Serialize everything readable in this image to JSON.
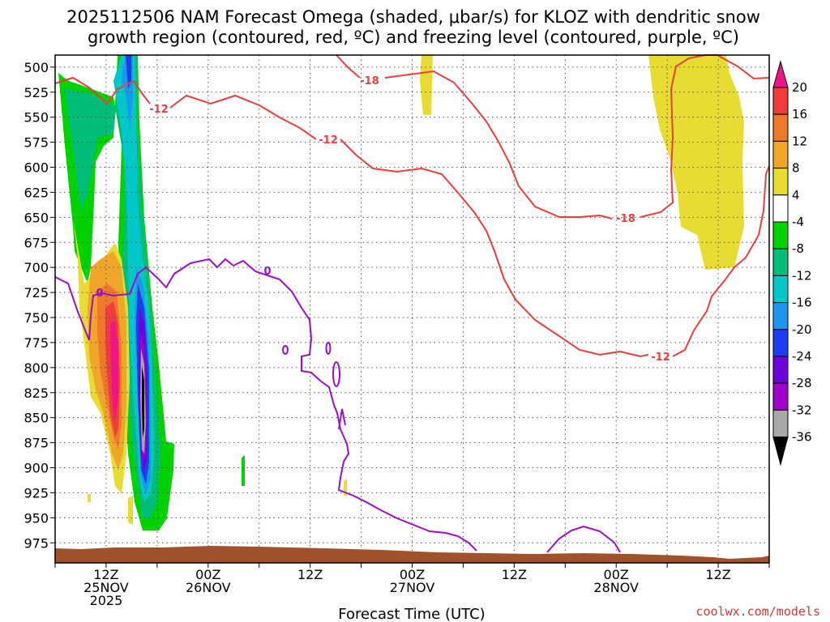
{
  "chart_data": {
    "type": "heatmap",
    "title": [
      "2025112506 NAM Forecast Omega (shaded, μbar/s) for KLOZ with dendritic snow",
      "growth region (contoured, red, ºC) and freezing level (contoured, purple, ºC)"
    ],
    "xlabel": "Forecast Time (UTC)",
    "ylabel": "",
    "y_ticks": [
      "500",
      "525",
      "550",
      "575",
      "600",
      "625",
      "650",
      "675",
      "700",
      "725",
      "750",
      "775",
      "800",
      "825",
      "850",
      "875",
      "900",
      "925",
      "950",
      "975"
    ],
    "x_ticks": [
      {
        "hour": 6,
        "l1": "12Z",
        "l2": "25NOV",
        "l3": "2025"
      },
      {
        "hour": 18,
        "l1": "00Z",
        "l2": "26NOV",
        "l3": ""
      },
      {
        "hour": 30,
        "l1": "12Z",
        "l2": "",
        "l3": ""
      },
      {
        "hour": 42,
        "l1": "00Z",
        "l2": "27NOV",
        "l3": ""
      },
      {
        "hour": 54,
        "l1": "12Z",
        "l2": "",
        "l3": ""
      },
      {
        "hour": 66,
        "l1": "00Z",
        "l2": "28NOV",
        "l3": ""
      },
      {
        "hour": 78,
        "l1": "12Z",
        "l2": "",
        "l3": ""
      }
    ],
    "x_range_hours": [
      0,
      84
    ],
    "y_range_mb": [
      488,
      995
    ],
    "colorbar": {
      "ticks": [
        "20",
        "16",
        "12",
        "8",
        "4",
        "-4",
        "-8",
        "-12",
        "-16",
        "-20",
        "-24",
        "-28",
        "-32",
        "-36"
      ],
      "colors": [
        "#f0148c",
        "#f03c3c",
        "#f0782a",
        "#f0a628",
        "#e8dc32",
        "#ffffff",
        "#00d200",
        "#00be78",
        "#00c8c8",
        "#1e96f0",
        "#1e3cf0",
        "#6e00dc",
        "#a000c8",
        "#a8a8a8",
        "#000000"
      ]
    },
    "contour_labels": {
      "dendritic": [
        "-18",
        "-12",
        "-12",
        "-18",
        "-12"
      ],
      "freezing": [
        "0",
        "0"
      ]
    }
  },
  "credit": "coolwx.com/models"
}
